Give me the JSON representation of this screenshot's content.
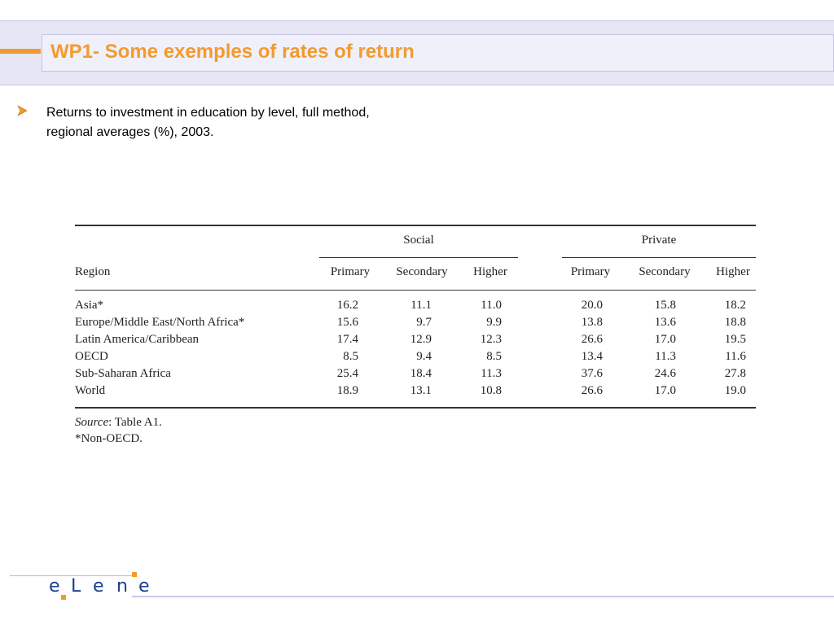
{
  "slide": {
    "title": "WP1- Some exemples of rates of return",
    "bullet_icon": "arrow-bullet-icon",
    "bullet_text": "Returns to investment in education by level, full method, regional averages (%), 2003."
  },
  "table": {
    "group_headers": {
      "social": "Social",
      "private": "Private"
    },
    "region_header": "Region",
    "sub_headers": [
      "Primary",
      "Secondary",
      "Higher",
      "Primary",
      "Secondary",
      "Higher"
    ],
    "rows": [
      {
        "region": "Asia*",
        "values": [
          "16.2",
          "11.1",
          "11.0",
          "20.0",
          "15.8",
          "18.2"
        ]
      },
      {
        "region": "Europe/Middle East/North Africa*",
        "values": [
          "15.6",
          "9.7",
          "9.9",
          "13.8",
          "13.6",
          "18.8"
        ]
      },
      {
        "region": "Latin America/Caribbean",
        "values": [
          "17.4",
          "12.9",
          "12.3",
          "26.6",
          "17.0",
          "19.5"
        ]
      },
      {
        "region": "OECD",
        "values": [
          "8.5",
          "9.4",
          "8.5",
          "13.4",
          "11.3",
          "11.6"
        ]
      },
      {
        "region": "Sub-Saharan Africa",
        "values": [
          "25.4",
          "18.4",
          "11.3",
          "37.6",
          "24.6",
          "27.8"
        ]
      },
      {
        "region": "World",
        "values": [
          "18.9",
          "13.1",
          "10.8",
          "26.6",
          "17.0",
          "19.0"
        ]
      }
    ],
    "source_label": "Source",
    "source_text": ": Table A1.",
    "note": "*Non-OECD."
  },
  "footer": {
    "logo_letters": [
      "e",
      "L",
      "e",
      "n",
      "e"
    ],
    "logo_color": "#1b3f8f",
    "accent_color": "#f39a2e"
  }
}
